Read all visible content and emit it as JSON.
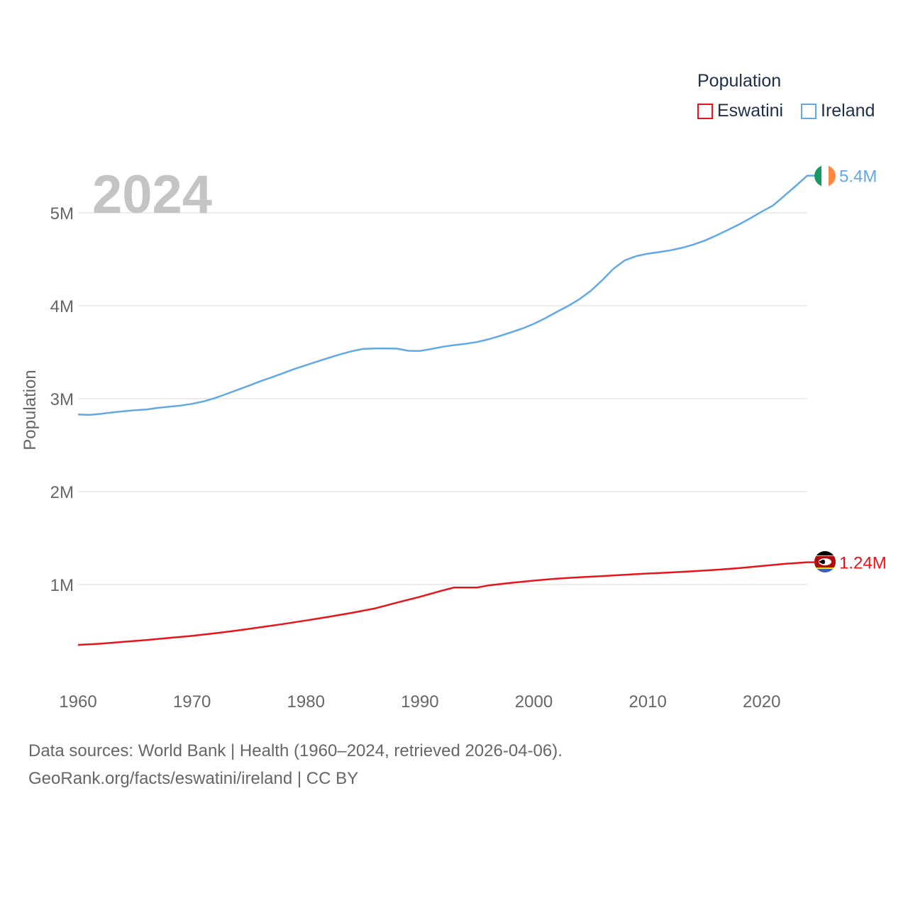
{
  "legend": {
    "title": "Population",
    "items": [
      {
        "label": "Eswatini",
        "color": "#e8141a"
      },
      {
        "label": "Ireland",
        "color": "#62a8e5"
      }
    ]
  },
  "footer": {
    "line1": "Data sources: World Bank | Health (1960–2024, retrieved 2026-04-06).",
    "line2": "GeoRank.org/facts/eswatini/ireland | CC BY"
  },
  "chart_data": {
    "type": "line",
    "year_watermark": "2024",
    "ylabel": "Population",
    "xlim": [
      1960,
      2024
    ],
    "ylim": [
      0,
      5600000
    ],
    "y_ticks": [
      {
        "value": 1000000,
        "label": "1M"
      },
      {
        "value": 2000000,
        "label": "2M"
      },
      {
        "value": 3000000,
        "label": "3M"
      },
      {
        "value": 4000000,
        "label": "4M"
      },
      {
        "value": 5000000,
        "label": "5M"
      }
    ],
    "x_ticks": [
      {
        "value": 1960,
        "label": "1960"
      },
      {
        "value": 1970,
        "label": "1970"
      },
      {
        "value": 1980,
        "label": "1980"
      },
      {
        "value": 1990,
        "label": "1990"
      },
      {
        "value": 2000,
        "label": "2000"
      },
      {
        "value": 2010,
        "label": "2010"
      },
      {
        "value": 2020,
        "label": "2020"
      }
    ],
    "series": [
      {
        "name": "Ireland",
        "color": "#62a8e5",
        "end_label": "5.4M",
        "points": [
          [
            1960,
            2830000
          ],
          [
            1961,
            2825000
          ],
          [
            1962,
            2837000
          ],
          [
            1963,
            2852000
          ],
          [
            1964,
            2864000
          ],
          [
            1965,
            2876000
          ],
          [
            1966,
            2884000
          ],
          [
            1967,
            2901000
          ],
          [
            1968,
            2913000
          ],
          [
            1969,
            2926000
          ],
          [
            1970,
            2944000
          ],
          [
            1971,
            2970000
          ],
          [
            1972,
            3006000
          ],
          [
            1973,
            3050000
          ],
          [
            1974,
            3095000
          ],
          [
            1975,
            3140000
          ],
          [
            1976,
            3188000
          ],
          [
            1977,
            3230000
          ],
          [
            1978,
            3274000
          ],
          [
            1979,
            3320000
          ],
          [
            1980,
            3360000
          ],
          [
            1981,
            3400000
          ],
          [
            1982,
            3440000
          ],
          [
            1983,
            3476000
          ],
          [
            1984,
            3510000
          ],
          [
            1985,
            3535000
          ],
          [
            1986,
            3540000
          ],
          [
            1987,
            3541000
          ],
          [
            1988,
            3538000
          ],
          [
            1989,
            3515000
          ],
          [
            1990,
            3514000
          ],
          [
            1991,
            3534000
          ],
          [
            1992,
            3558000
          ],
          [
            1993,
            3576000
          ],
          [
            1994,
            3590000
          ],
          [
            1995,
            3609000
          ],
          [
            1996,
            3638000
          ],
          [
            1997,
            3674000
          ],
          [
            1998,
            3714000
          ],
          [
            1999,
            3755000
          ],
          [
            2000,
            3805000
          ],
          [
            2001,
            3866000
          ],
          [
            2002,
            3932000
          ],
          [
            2003,
            3997000
          ],
          [
            2004,
            4070000
          ],
          [
            2005,
            4160000
          ],
          [
            2006,
            4274000
          ],
          [
            2007,
            4399000
          ],
          [
            2008,
            4489000
          ],
          [
            2009,
            4534000
          ],
          [
            2010,
            4560000
          ],
          [
            2011,
            4577000
          ],
          [
            2012,
            4597000
          ],
          [
            2013,
            4623000
          ],
          [
            2014,
            4658000
          ],
          [
            2015,
            4701000
          ],
          [
            2016,
            4755000
          ],
          [
            2017,
            4814000
          ],
          [
            2018,
            4874000
          ],
          [
            2019,
            4941000
          ],
          [
            2020,
            5013000
          ],
          [
            2021,
            5079000
          ],
          [
            2022,
            5185000
          ],
          [
            2023,
            5290000
          ],
          [
            2024,
            5400000
          ]
        ]
      },
      {
        "name": "Eswatini",
        "color": "#e8141a",
        "end_label": "1.24M",
        "points": [
          [
            1960,
            350000
          ],
          [
            1962,
            363000
          ],
          [
            1964,
            383000
          ],
          [
            1966,
            403000
          ],
          [
            1968,
            425000
          ],
          [
            1970,
            447000
          ],
          [
            1972,
            475000
          ],
          [
            1974,
            505000
          ],
          [
            1976,
            540000
          ],
          [
            1978,
            575000
          ],
          [
            1980,
            613000
          ],
          [
            1982,
            653000
          ],
          [
            1984,
            695000
          ],
          [
            1986,
            741000
          ],
          [
            1988,
            806000
          ],
          [
            1990,
            868000
          ],
          [
            1992,
            937000
          ],
          [
            1993,
            967000
          ],
          [
            1994,
            968000
          ],
          [
            1995,
            967000
          ],
          [
            1996,
            990000
          ],
          [
            1998,
            1018000
          ],
          [
            2000,
            1042000
          ],
          [
            2002,
            1063000
          ],
          [
            2004,
            1078000
          ],
          [
            2006,
            1091000
          ],
          [
            2008,
            1105000
          ],
          [
            2010,
            1118000
          ],
          [
            2012,
            1130000
          ],
          [
            2014,
            1143000
          ],
          [
            2016,
            1158000
          ],
          [
            2018,
            1176000
          ],
          [
            2020,
            1199000
          ],
          [
            2022,
            1222000
          ],
          [
            2024,
            1240000
          ]
        ]
      }
    ]
  }
}
